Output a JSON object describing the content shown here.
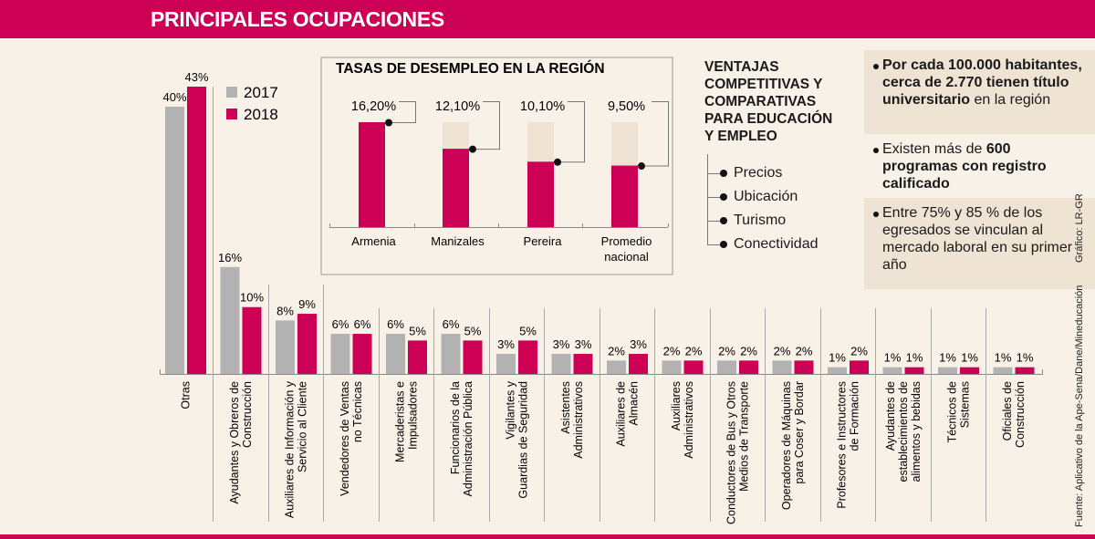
{
  "header": {
    "title": "PRINCIPALES OCUPACIONES"
  },
  "colors": {
    "brand": "#cc0055",
    "bar_2017": "#b3b2b2",
    "bar_2018": "#cc0055",
    "background": "#f8f1e8",
    "ghost_bar": "#efe3d3"
  },
  "chart_data": [
    {
      "id": "occupations",
      "type": "bar",
      "title": "PRINCIPALES OCUPACIONES",
      "legend": {
        "entries": [
          "2017",
          "2018"
        ],
        "placement": "top-left"
      },
      "categories": [
        "Otras",
        "Ayudantes y Obreros de Construcción",
        "Auxiliares de Información y Servicio al Cliente",
        "Vendedores de Ventas no Técnicas",
        "Mercaderistas e Impulsadores",
        "Funcionarios de la Administración Pública",
        "Vigilantes y Guardias de Seguridad",
        "Asistentes Administrativos",
        "Auxiliares de Almacén",
        "Auxiliares Administrativos",
        "Conductores de Bus y Otros Medios de Transporte",
        "Operadores de Máquinas para Coser y Bordar",
        "Profesores e Instructores de Formación",
        "Ayudantes de establecimientos de alimentos y bebidas",
        "Técnicos de Sistemas",
        "Oficiales de Construcción"
      ],
      "category_lines": [
        [
          "Otras"
        ],
        [
          "Ayudantes y Obreros de",
          "Construcción"
        ],
        [
          "Auxiliares de Información y",
          "Servicio al Cliente"
        ],
        [
          "Vendedores de Ventas",
          "no Técnicas"
        ],
        [
          "Mercaderistas e",
          "Impulsadores"
        ],
        [
          "Funcionarios de la",
          "Administración Pública"
        ],
        [
          "Vigilantes y",
          "Guardias de Seguridad"
        ],
        [
          "Asistentes",
          "Administrativos"
        ],
        [
          "Auxiliares de",
          "Almacén"
        ],
        [
          "Auxiliares",
          "Administrativos"
        ],
        [
          "Conductores de Bus y Otros",
          "Medios de Transporte"
        ],
        [
          "Operadores de Máquinas",
          "para Coser y Bordar"
        ],
        [
          "Profesores e Instructores",
          "de Formación"
        ],
        [
          "Ayudantes de",
          "establecimientos de",
          "alimentos y bebidas"
        ],
        [
          "Técnicos de",
          "Sistemas"
        ],
        [
          "Oficiales de",
          "Construcción"
        ]
      ],
      "series": [
        {
          "name": "2017",
          "values": [
            40,
            16,
            8,
            6,
            6,
            6,
            3,
            3,
            2,
            2,
            2,
            2,
            1,
            1,
            1,
            1
          ]
        },
        {
          "name": "2018",
          "values": [
            43,
            10,
            9,
            6,
            5,
            5,
            5,
            3,
            3,
            2,
            2,
            2,
            2,
            1,
            1,
            1
          ]
        }
      ],
      "value_suffix": "%",
      "ylim": [
        0,
        43
      ],
      "grid": false
    },
    {
      "id": "unemployment",
      "type": "bar",
      "title": "TASAS DE DESEMPLEO EN LA REGIÓN",
      "categories": [
        "Armenia",
        "Manizales",
        "Pereira",
        "Promedio nacional"
      ],
      "category_lines": [
        [
          "Armenia"
        ],
        [
          "Manizales"
        ],
        [
          "Pereira"
        ],
        [
          "Promedio",
          "nacional"
        ]
      ],
      "values": [
        16.2,
        12.1,
        10.1,
        9.5
      ],
      "labels": [
        "16,20%",
        "12,10%",
        "10,10%",
        "9,50%"
      ],
      "ylim": [
        0,
        16.2
      ],
      "grid": false
    }
  ],
  "ventajas": {
    "title_lines": [
      "VENTAJAS",
      "COMPETITIVAS Y",
      "COMPARATIVAS",
      "PARA EDUCACIÓN",
      "Y EMPLEO"
    ],
    "items": [
      "Precios",
      "Ubicación",
      "Turismo",
      "Conectividad"
    ]
  },
  "facts": [
    {
      "bold": "Por cada 100.000 habitantes, cerca de 2.770 tienen título universitario",
      "normal": " en la región"
    },
    {
      "normal": "Existen más de ",
      "bold": "600 programas con registro calificado"
    },
    {
      "normal": "Entre 75% y 85 % de los egresados se vinculan al mercado laboral en su primer año"
    }
  ],
  "credits": {
    "grafico": "Gráfico: LR-GR",
    "fuente": "Fuente: Aplicativo de la Ape-Sena/Dane/Mineducación"
  }
}
